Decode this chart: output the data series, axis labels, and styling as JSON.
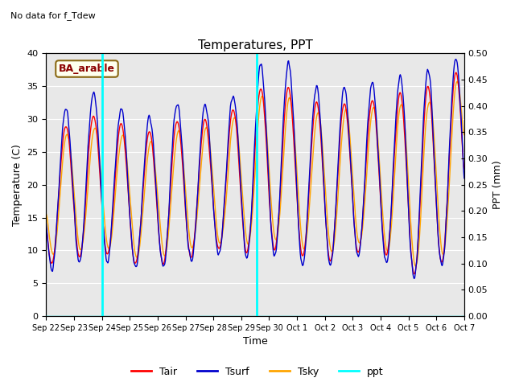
{
  "title": "Temperatures, PPT",
  "subtitle": "No data for f_Tdew",
  "annotation": "BA_arable",
  "xlabel": "Time",
  "ylabel_left": "Temperature (C)",
  "ylabel_right": "PPT (mm)",
  "xlim_days": [
    0,
    15
  ],
  "ylim_left": [
    0,
    40
  ],
  "ylim_right": [
    0,
    0.5
  ],
  "yticks_left": [
    0,
    5,
    10,
    15,
    20,
    25,
    30,
    35,
    40
  ],
  "yticks_right": [
    0.0,
    0.05,
    0.1,
    0.15,
    0.2,
    0.25,
    0.3,
    0.35,
    0.4,
    0.45,
    0.5
  ],
  "xtick_labels": [
    "Sep 22",
    "Sep 23",
    "Sep 24",
    "Sep 25",
    "Sep 26",
    "Sep 27",
    "Sep 28",
    "Sep 29",
    "Sep 30",
    "Oct 1",
    "Oct 2",
    "Oct 3",
    "Oct 4",
    "Oct 5",
    "Oct 6",
    "Oct 7"
  ],
  "color_tair": "#ff0000",
  "color_tsurf": "#0000cd",
  "color_tsky": "#ffa500",
  "color_ppt": "#00ffff",
  "bg_color": "#e8e8e8",
  "vline1_x": 2.0,
  "vline2_x": 7.55,
  "legend_labels": [
    "Tair",
    "Tsurf",
    "Tsky",
    "ppt"
  ],
  "figsize": [
    6.4,
    4.8
  ],
  "dpi": 100
}
